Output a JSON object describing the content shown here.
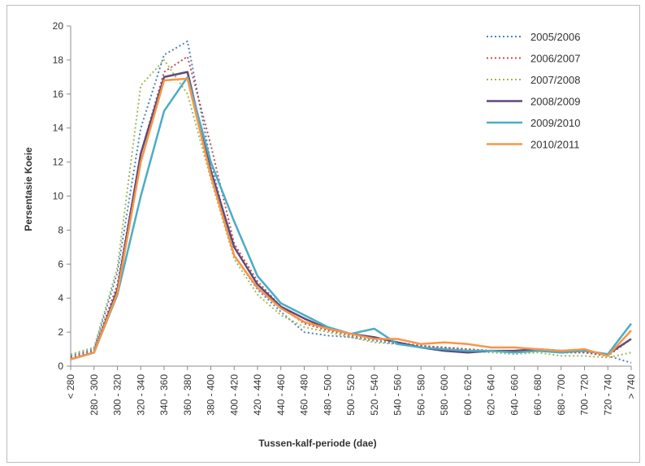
{
  "chart_data": {
    "type": "line",
    "xlabel": "Tussen-kalf-periode (dae)",
    "ylabel": "Persentasie Koeie",
    "ylim": [
      0,
      20
    ],
    "yticks": [
      0,
      2,
      4,
      6,
      8,
      10,
      12,
      14,
      16,
      18,
      20
    ],
    "grid": false,
    "legend_position": "top-right",
    "categories": [
      "< 280",
      "280 - 300",
      "300 - 320",
      "320 - 340",
      "340 - 360",
      "360 - 380",
      "380 - 400",
      "400 - 420",
      "420 - 440",
      "440 - 460",
      "460 - 480",
      "480 - 500",
      "500 - 520",
      "520 - 540",
      "540 - 560",
      "560 - 580",
      "580 - 600",
      "600 - 620",
      "620 - 640",
      "640 - 660",
      "660 - 680",
      "680 - 700",
      "700 - 720",
      "720 - 740",
      "> 740"
    ],
    "series": [
      {
        "name": "2005/2006",
        "color": "#4f81bd",
        "dash": "dotted",
        "values": [
          0.6,
          1.0,
          5.5,
          14.0,
          18.3,
          19.1,
          12.0,
          6.5,
          4.5,
          3.2,
          2.0,
          1.8,
          1.7,
          1.5,
          1.3,
          1.2,
          1.1,
          1.0,
          0.9,
          0.9,
          0.9,
          0.8,
          0.8,
          0.6,
          0.2
        ]
      },
      {
        "name": "2006/2007",
        "color": "#c0504d",
        "dash": "dotted",
        "values": [
          0.5,
          0.9,
          4.8,
          12.5,
          17.3,
          18.2,
          13.0,
          7.2,
          5.0,
          3.5,
          2.5,
          2.1,
          1.8,
          1.6,
          1.4,
          1.2,
          1.1,
          1.0,
          0.9,
          0.9,
          0.9,
          0.8,
          0.8,
          0.6,
          1.6
        ]
      },
      {
        "name": "2007/2008",
        "color": "#9bbb59",
        "dash": "dotted",
        "values": [
          0.7,
          1.1,
          5.8,
          16.5,
          18.0,
          16.0,
          11.0,
          6.3,
          4.2,
          3.0,
          2.3,
          2.0,
          1.7,
          1.4,
          1.3,
          1.1,
          1.0,
          0.9,
          0.8,
          0.7,
          0.8,
          0.6,
          0.6,
          0.5,
          0.8
        ]
      },
      {
        "name": "2008/2009",
        "color": "#604a7b",
        "dash": "solid",
        "values": [
          0.4,
          0.8,
          4.5,
          12.5,
          17.0,
          17.3,
          11.5,
          7.0,
          4.8,
          3.5,
          2.8,
          2.2,
          1.9,
          1.7,
          1.4,
          1.1,
          0.9,
          0.8,
          0.9,
          0.9,
          1.0,
          0.9,
          0.9,
          0.7,
          1.6
        ]
      },
      {
        "name": "2009/2010",
        "color": "#4bacc6",
        "dash": "solid",
        "values": [
          0.4,
          0.8,
          4.2,
          10.0,
          15.0,
          17.0,
          12.0,
          8.5,
          5.3,
          3.7,
          3.0,
          2.3,
          1.9,
          2.2,
          1.3,
          1.1,
          1.0,
          0.9,
          0.9,
          0.8,
          0.9,
          0.8,
          0.9,
          0.7,
          2.5
        ]
      },
      {
        "name": "2010/2011",
        "color": "#f79646",
        "dash": "solid",
        "values": [
          0.4,
          0.8,
          4.3,
          12.0,
          16.8,
          16.9,
          11.2,
          6.5,
          4.6,
          3.4,
          2.6,
          2.2,
          1.9,
          1.6,
          1.6,
          1.3,
          1.4,
          1.3,
          1.1,
          1.1,
          1.0,
          0.9,
          1.0,
          0.6,
          2.1
        ]
      }
    ]
  }
}
